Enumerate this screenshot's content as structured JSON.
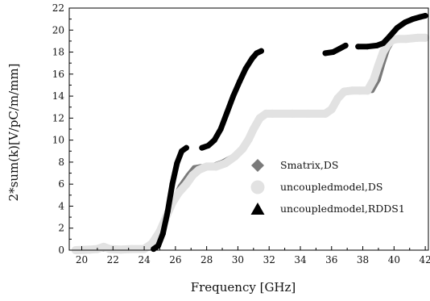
{
  "chart_data": {
    "type": "scatter",
    "xlabel": "Frequency [GHz]",
    "ylabel": "2*sum(k)[V/pC/m/mm]",
    "xlim": [
      19.2,
      42.2
    ],
    "ylim": [
      0,
      22
    ],
    "x_ticks": [
      "20",
      "22",
      "24",
      "26",
      "28",
      "30",
      "32",
      "34",
      "36",
      "38",
      "40",
      "42"
    ],
    "y_ticks": [
      "0",
      "2",
      "4",
      "6",
      "8",
      "10",
      "12",
      "14",
      "16",
      "18",
      "20",
      "22"
    ],
    "grid": false,
    "legend_position": "right",
    "series": [
      {
        "name": "Smatrix,DS",
        "marker": "diamond",
        "color": "#7a7a7a",
        "x": [
          19.6,
          20.5,
          21.5,
          22.5,
          23.5,
          24.3,
          24.8,
          25.3,
          25.8,
          26.3,
          26.8,
          27.2,
          27.6,
          28.2,
          29.0,
          29.8,
          30.4,
          30.9,
          31.3,
          31.7,
          32.2,
          33.5,
          34.5,
          35.6,
          36.0,
          36.4,
          36.8,
          37.3,
          37.9,
          38.6,
          39.0,
          39.3,
          39.6,
          39.9,
          40.4,
          41.0,
          41.8
        ],
        "y": [
          0.0,
          0.05,
          0.1,
          0.1,
          0.1,
          0.2,
          0.8,
          2.2,
          4.3,
          5.8,
          6.8,
          7.5,
          7.6,
          7.6,
          8.0,
          8.6,
          9.5,
          10.8,
          12.0,
          12.4,
          12.4,
          12.4,
          12.4,
          12.4,
          12.7,
          13.6,
          14.4,
          14.5,
          14.5,
          14.5,
          15.5,
          17.0,
          18.3,
          19.0,
          19.2,
          19.3,
          19.3
        ]
      },
      {
        "name": "uncoupledmodel,DS",
        "marker": "circle",
        "color": "#e2e2e2",
        "x": [
          19.6,
          20.5,
          21.0,
          21.4,
          21.8,
          22.5,
          23.2,
          24.0,
          24.5,
          25.0,
          25.4,
          25.8,
          26.2,
          26.7,
          27.1,
          27.5,
          28.0,
          28.6,
          29.2,
          29.8,
          30.3,
          30.7,
          31.0,
          31.4,
          31.8,
          32.2,
          33.5,
          34.5,
          35.6,
          36.0,
          36.4,
          36.8,
          37.3,
          37.8,
          38.3,
          38.7,
          39.0,
          39.3,
          39.6,
          39.9,
          40.3,
          40.8,
          41.5,
          42.0
        ],
        "y": [
          0.0,
          0.05,
          0.1,
          0.3,
          0.1,
          0.05,
          0.1,
          0.1,
          0.6,
          1.7,
          3.0,
          4.3,
          5.2,
          6.0,
          6.8,
          7.3,
          7.6,
          7.6,
          7.9,
          8.5,
          9.2,
          10.1,
          11.0,
          12.0,
          12.4,
          12.4,
          12.4,
          12.4,
          12.4,
          12.8,
          13.8,
          14.4,
          14.5,
          14.5,
          14.5,
          15.5,
          16.8,
          18.0,
          18.7,
          19.1,
          19.2,
          19.2,
          19.3,
          19.3
        ]
      },
      {
        "name": "uncoupledmodel,RDDS1",
        "marker": "triangle",
        "color": "#000000",
        "segments": [
          {
            "x": [
              24.6,
              24.9,
              25.2,
              25.5,
              25.8,
              26.1,
              26.4,
              26.7
            ],
            "y": [
              0.1,
              0.4,
              1.5,
              3.5,
              6.0,
              7.9,
              9.0,
              9.3
            ]
          },
          {
            "x": [
              27.7,
              28.1,
              28.5,
              28.9,
              29.3,
              29.7,
              30.1,
              30.5,
              30.9,
              31.2,
              31.5
            ],
            "y": [
              9.3,
              9.5,
              10.0,
              11.0,
              12.5,
              14.0,
              15.3,
              16.5,
              17.4,
              17.9,
              18.1
            ]
          },
          {
            "x": [
              35.6,
              36.1,
              36.5,
              36.9
            ],
            "y": [
              17.9,
              18.0,
              18.3,
              18.6
            ]
          },
          {
            "x": [
              37.7,
              38.3,
              38.9,
              39.3,
              39.7,
              40.2,
              40.7,
              41.2,
              41.7,
              42.0
            ],
            "y": [
              18.5,
              18.5,
              18.6,
              18.8,
              19.4,
              20.2,
              20.7,
              21.0,
              21.2,
              21.3
            ]
          }
        ]
      }
    ]
  }
}
